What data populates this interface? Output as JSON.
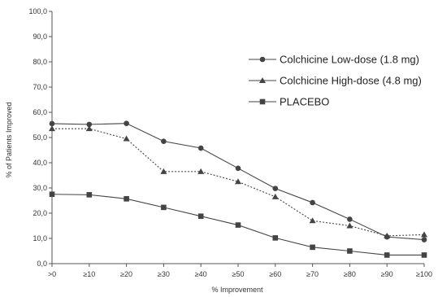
{
  "chart_data": {
    "type": "line",
    "title": "",
    "xlabel": "% Improvement",
    "ylabel": "% of Patients Improved",
    "categories": [
      ">0",
      "≥10",
      "≥20",
      "≥30",
      "≥40",
      "≥50",
      "≥60",
      "≥70",
      "≥80",
      "≥90",
      "≥100"
    ],
    "ylim": [
      0,
      100
    ],
    "yticks": [
      "0,0",
      "10,0",
      "20,0",
      "30,0",
      "40,0",
      "50,0",
      "60,0",
      "70,0",
      "80,0",
      "90,0",
      "100,0"
    ],
    "grid": false,
    "legend_position": "right",
    "series": [
      {
        "name": "Colchicine Low-dose (1.8 mg)",
        "marker": "circle",
        "line_style": "solid",
        "values": [
          55.5,
          55.2,
          55.6,
          48.5,
          45.8,
          37.8,
          29.8,
          24.2,
          17.6,
          10.6,
          9.5
        ]
      },
      {
        "name": "Colchicine High-dose (4.8 mg)",
        "marker": "triangle",
        "line_style": "dotted",
        "values": [
          53.5,
          53.5,
          49.5,
          36.5,
          36.5,
          32.5,
          26.5,
          17.0,
          15.0,
          11.0,
          11.5
        ]
      },
      {
        "name": "PLACEBO",
        "marker": "square",
        "line_style": "solid",
        "values": [
          27.5,
          27.3,
          25.7,
          22.3,
          18.8,
          15.3,
          10.2,
          6.5,
          5.0,
          3.4,
          3.4
        ]
      }
    ]
  }
}
